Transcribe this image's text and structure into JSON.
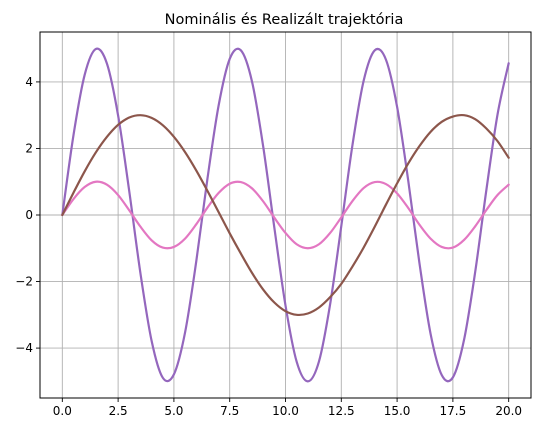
{
  "chart_data": {
    "type": "line",
    "title": "Nominális és Realizált trajektória",
    "xlabel": "",
    "ylabel": "",
    "xlim": [
      -1.0,
      21.0
    ],
    "ylim": [
      -5.5,
      5.5
    ],
    "grid": true,
    "x_ticks": [
      0.0,
      2.5,
      5.0,
      7.5,
      10.0,
      12.5,
      15.0,
      17.5,
      20.0
    ],
    "x_tick_labels": [
      "0.0",
      "2.5",
      "5.0",
      "7.5",
      "10.0",
      "12.5",
      "15.0",
      "17.5",
      "20.0"
    ],
    "y_ticks": [
      -4,
      -2,
      0,
      2,
      4
    ],
    "y_tick_labels": [
      "−4",
      "−2",
      "0",
      "2",
      "4"
    ],
    "x": [
      0.0,
      0.5,
      1.0,
      1.5,
      2.0,
      2.5,
      3.0,
      3.5,
      4.0,
      4.5,
      5.0,
      5.5,
      6.0,
      6.5,
      7.0,
      7.5,
      8.0,
      8.5,
      9.0,
      9.5,
      10.0,
      10.5,
      11.0,
      11.5,
      12.0,
      12.5,
      13.0,
      13.5,
      14.0,
      14.5,
      15.0,
      15.5,
      16.0,
      16.5,
      17.0,
      17.5,
      18.0,
      18.5,
      19.0,
      19.5,
      20.0
    ],
    "series": [
      {
        "color": "#9467bd",
        "values": [
          0.0,
          2.4,
          4.21,
          4.99,
          4.55,
          2.99,
          0.71,
          -1.75,
          -3.78,
          -4.89,
          -4.79,
          -3.53,
          -1.4,
          1.08,
          3.28,
          4.69,
          4.95,
          4.01,
          2.06,
          -0.38,
          -2.72,
          -4.41,
          -5.0,
          -4.4,
          -2.68,
          -0.33,
          2.1,
          4.03,
          4.95,
          4.67,
          3.25,
          1.03,
          -1.44,
          -3.57,
          -4.81,
          -4.88,
          -3.75,
          -1.71,
          0.75,
          3.02,
          4.56
        ]
      },
      {
        "color": "#e377c2",
        "values": [
          0.0,
          0.48,
          0.84,
          1.0,
          0.91,
          0.6,
          0.14,
          -0.35,
          -0.76,
          -0.98,
          -0.96,
          -0.71,
          -0.28,
          0.22,
          0.66,
          0.94,
          0.99,
          0.8,
          0.41,
          -0.08,
          -0.54,
          -0.88,
          -1.0,
          -0.88,
          -0.54,
          -0.07,
          0.42,
          0.81,
          0.99,
          0.93,
          0.65,
          0.21,
          -0.29,
          -0.71,
          -0.96,
          -0.98,
          -0.75,
          -0.34,
          0.15,
          0.6,
          0.91
        ]
      },
      {
        "color": "#8c564b",
        "values": [
          0.0,
          0.67,
          1.31,
          1.88,
          2.35,
          2.71,
          2.93,
          3.0,
          2.92,
          2.7,
          2.35,
          1.89,
          1.34,
          0.73,
          0.09,
          -0.55,
          -1.16,
          -1.74,
          -2.24,
          -2.63,
          -2.89,
          -3.0,
          -2.96,
          -2.78,
          -2.47,
          -2.07,
          -1.55,
          -0.98,
          -0.35,
          0.31,
          0.95,
          1.55,
          2.07,
          2.5,
          2.8,
          2.96,
          3.0,
          2.88,
          2.6,
          2.22,
          1.72
        ]
      }
    ]
  }
}
